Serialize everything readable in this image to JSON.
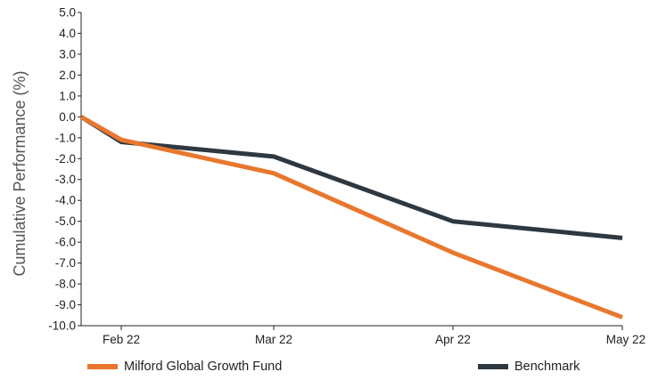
{
  "chart_data": {
    "type": "line",
    "ylabel": "Cumulative Performance (%)",
    "xlabel": "",
    "ylim": [
      -10,
      5
    ],
    "y_ticks": [
      "5.0",
      "4.0",
      "3.0",
      "2.0",
      "1.0",
      "0.0",
      "-1.0",
      "-2.0",
      "-3.0",
      "-4.0",
      "-5.0",
      "-6.0",
      "-7.0",
      "-8.0",
      "-9.0",
      "-10.0"
    ],
    "x_ticks": [
      "Feb 22",
      "Mar 22",
      "Apr 22",
      "May 22"
    ],
    "x": [
      "Feb 1 22",
      "Feb 22",
      "Mar 22",
      "Apr 22",
      "May 22"
    ],
    "series": [
      {
        "name": "Milford Global Growth Fund",
        "color": "#E8772E",
        "values": [
          0.0,
          -1.1,
          -2.7,
          -6.5,
          -9.6
        ]
      },
      {
        "name": "Benchmark",
        "color": "#2E3840",
        "values": [
          0.0,
          -1.2,
          -1.9,
          -5.0,
          -5.8
        ]
      }
    ],
    "grid": false,
    "legend_position": "bottom"
  }
}
